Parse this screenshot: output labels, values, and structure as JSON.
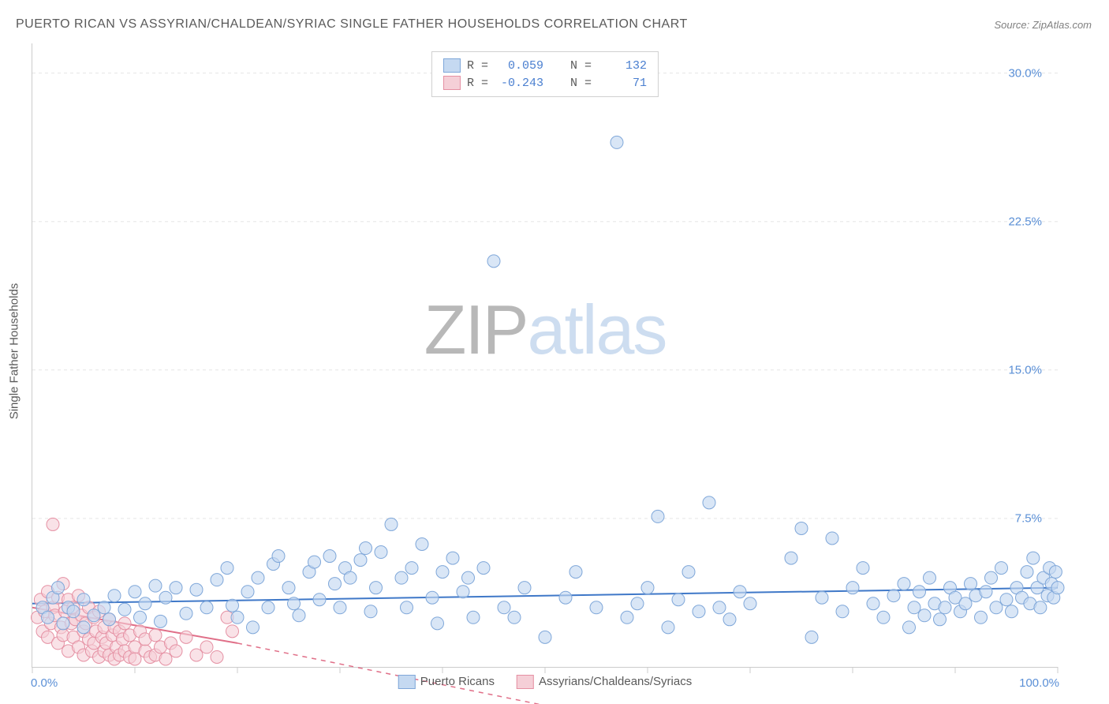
{
  "title": "PUERTO RICAN VS ASSYRIAN/CHALDEAN/SYRIAC SINGLE FATHER HOUSEHOLDS CORRELATION CHART",
  "source": "Source: ZipAtlas.com",
  "y_axis_label": "Single Father Households",
  "watermark": {
    "part1": "ZIP",
    "part2": "atlas"
  },
  "chart": {
    "type": "scatter",
    "xlim": [
      0,
      100
    ],
    "ylim": [
      0,
      31.5
    ],
    "x_ticks": [
      0,
      10,
      20,
      30,
      40,
      50,
      60,
      70,
      80,
      90,
      100
    ],
    "x_tick_labels": {
      "0": "0.0%",
      "100": "100.0%"
    },
    "y_ticks": [
      7.5,
      15.0,
      22.5,
      30.0
    ],
    "y_tick_labels": [
      "7.5%",
      "15.0%",
      "22.5%",
      "30.0%"
    ],
    "background_color": "#ffffff",
    "grid_color": "#e5e5e5",
    "axis_color": "#cccccc",
    "label_color": "#5a5a5a",
    "tick_label_color": "#5a8fd6",
    "marker_radius": 8,
    "marker_stroke_width": 1,
    "series": [
      {
        "name": "Puerto Ricans",
        "fill": "#c5d9f1",
        "stroke": "#7fa7d9",
        "fill_opacity": 0.65,
        "r_value": "0.059",
        "n_value": "132",
        "trend": {
          "x0": 0,
          "y0": 3.2,
          "x1": 100,
          "y1": 4.0,
          "color": "#3f78c8",
          "width": 2,
          "dash": "none",
          "dash_ext": "none"
        },
        "points": [
          [
            1,
            3.0
          ],
          [
            1.5,
            2.5
          ],
          [
            2,
            3.5
          ],
          [
            2.5,
            4.0
          ],
          [
            3,
            2.2
          ],
          [
            3.5,
            3.0
          ],
          [
            4,
            2.8
          ],
          [
            5,
            2.0
          ],
          [
            5,
            3.4
          ],
          [
            6,
            2.6
          ],
          [
            7,
            3.0
          ],
          [
            7.5,
            2.4
          ],
          [
            8,
            3.6
          ],
          [
            9,
            2.9
          ],
          [
            10,
            3.8
          ],
          [
            10.5,
            2.5
          ],
          [
            11,
            3.2
          ],
          [
            12,
            4.1
          ],
          [
            12.5,
            2.3
          ],
          [
            13,
            3.5
          ],
          [
            14,
            4.0
          ],
          [
            15,
            2.7
          ],
          [
            16,
            3.9
          ],
          [
            17,
            3.0
          ],
          [
            18,
            4.4
          ],
          [
            19,
            5.0
          ],
          [
            19.5,
            3.1
          ],
          [
            20,
            2.5
          ],
          [
            21,
            3.8
          ],
          [
            21.5,
            2.0
          ],
          [
            22,
            4.5
          ],
          [
            23,
            3.0
          ],
          [
            23.5,
            5.2
          ],
          [
            24,
            5.6
          ],
          [
            25,
            4.0
          ],
          [
            25.5,
            3.2
          ],
          [
            26,
            2.6
          ],
          [
            27,
            4.8
          ],
          [
            27.5,
            5.3
          ],
          [
            28,
            3.4
          ],
          [
            29,
            5.6
          ],
          [
            29.5,
            4.2
          ],
          [
            30,
            3.0
          ],
          [
            30.5,
            5.0
          ],
          [
            31,
            4.5
          ],
          [
            32,
            5.4
          ],
          [
            32.5,
            6.0
          ],
          [
            33,
            2.8
          ],
          [
            33.5,
            4.0
          ],
          [
            34,
            5.8
          ],
          [
            35,
            7.2
          ],
          [
            36,
            4.5
          ],
          [
            36.5,
            3.0
          ],
          [
            37,
            5.0
          ],
          [
            38,
            6.2
          ],
          [
            39,
            3.5
          ],
          [
            39.5,
            2.2
          ],
          [
            40,
            4.8
          ],
          [
            41,
            5.5
          ],
          [
            42,
            3.8
          ],
          [
            42.5,
            4.5
          ],
          [
            43,
            2.5
          ],
          [
            44,
            5.0
          ],
          [
            45,
            20.5
          ],
          [
            46,
            3.0
          ],
          [
            47,
            2.5
          ],
          [
            48,
            4.0
          ],
          [
            50,
            1.5
          ],
          [
            52,
            3.5
          ],
          [
            53,
            4.8
          ],
          [
            55,
            3.0
          ],
          [
            57,
            26.5
          ],
          [
            58,
            2.5
          ],
          [
            59,
            3.2
          ],
          [
            60,
            4.0
          ],
          [
            61,
            7.6
          ],
          [
            62,
            2.0
          ],
          [
            63,
            3.4
          ],
          [
            64,
            4.8
          ],
          [
            65,
            2.8
          ],
          [
            66,
            8.3
          ],
          [
            67,
            3.0
          ],
          [
            68,
            2.4
          ],
          [
            69,
            3.8
          ],
          [
            70,
            3.2
          ],
          [
            74,
            5.5
          ],
          [
            75,
            7.0
          ],
          [
            76,
            1.5
          ],
          [
            77,
            3.5
          ],
          [
            78,
            6.5
          ],
          [
            79,
            2.8
          ],
          [
            80,
            4.0
          ],
          [
            81,
            5.0
          ],
          [
            82,
            3.2
          ],
          [
            83,
            2.5
          ],
          [
            84,
            3.6
          ],
          [
            85,
            4.2
          ],
          [
            85.5,
            2.0
          ],
          [
            86,
            3.0
          ],
          [
            86.5,
            3.8
          ],
          [
            87,
            2.6
          ],
          [
            87.5,
            4.5
          ],
          [
            88,
            3.2
          ],
          [
            88.5,
            2.4
          ],
          [
            89,
            3.0
          ],
          [
            89.5,
            4.0
          ],
          [
            90,
            3.5
          ],
          [
            90.5,
            2.8
          ],
          [
            91,
            3.2
          ],
          [
            91.5,
            4.2
          ],
          [
            92,
            3.6
          ],
          [
            92.5,
            2.5
          ],
          [
            93,
            3.8
          ],
          [
            93.5,
            4.5
          ],
          [
            94,
            3.0
          ],
          [
            94.5,
            5.0
          ],
          [
            95,
            3.4
          ],
          [
            95.5,
            2.8
          ],
          [
            96,
            4.0
          ],
          [
            96.5,
            3.5
          ],
          [
            97,
            4.8
          ],
          [
            97.3,
            3.2
          ],
          [
            97.6,
            5.5
          ],
          [
            98,
            4.0
          ],
          [
            98.3,
            3.0
          ],
          [
            98.6,
            4.5
          ],
          [
            99,
            3.6
          ],
          [
            99.2,
            5.0
          ],
          [
            99.4,
            4.2
          ],
          [
            99.6,
            3.5
          ],
          [
            99.8,
            4.8
          ],
          [
            100,
            4.0
          ]
        ]
      },
      {
        "name": "Assyrians/Chaldeans/Syriacs",
        "fill": "#f5cfd7",
        "stroke": "#e590a3",
        "fill_opacity": 0.6,
        "r_value": "-0.243",
        "n_value": "71",
        "trend": {
          "x0": 0,
          "y0": 3.0,
          "x1": 20,
          "y1": 1.2,
          "color": "#e06f88",
          "width": 2,
          "dash": "none",
          "dash_ext": "6,6",
          "ext_x1": 60,
          "ext_y1": -3.0
        },
        "points": [
          [
            0.5,
            2.5
          ],
          [
            0.8,
            3.4
          ],
          [
            1.0,
            1.8
          ],
          [
            1.2,
            2.8
          ],
          [
            1.5,
            3.8
          ],
          [
            1.5,
            1.5
          ],
          [
            1.8,
            2.2
          ],
          [
            2.0,
            3.0
          ],
          [
            2.0,
            7.2
          ],
          [
            2.2,
            2.6
          ],
          [
            2.5,
            1.2
          ],
          [
            2.5,
            3.5
          ],
          [
            2.8,
            2.0
          ],
          [
            3.0,
            4.2
          ],
          [
            3.0,
            1.6
          ],
          [
            3.2,
            2.8
          ],
          [
            3.5,
            3.4
          ],
          [
            3.5,
            0.8
          ],
          [
            3.8,
            2.2
          ],
          [
            4.0,
            1.5
          ],
          [
            4.0,
            3.0
          ],
          [
            4.2,
            2.4
          ],
          [
            4.5,
            1.0
          ],
          [
            4.5,
            3.6
          ],
          [
            4.8,
            2.6
          ],
          [
            5.0,
            1.8
          ],
          [
            5.0,
            0.6
          ],
          [
            5.2,
            2.2
          ],
          [
            5.5,
            3.0
          ],
          [
            5.5,
            1.4
          ],
          [
            5.8,
            0.8
          ],
          [
            6.0,
            2.5
          ],
          [
            6.0,
            1.2
          ],
          [
            6.2,
            1.8
          ],
          [
            6.5,
            0.5
          ],
          [
            6.5,
            2.8
          ],
          [
            6.8,
            1.5
          ],
          [
            7.0,
            2.0
          ],
          [
            7.0,
            0.8
          ],
          [
            7.2,
            1.2
          ],
          [
            7.5,
            2.4
          ],
          [
            7.5,
            0.6
          ],
          [
            7.8,
            1.6
          ],
          [
            8.0,
            0.4
          ],
          [
            8.0,
            2.0
          ],
          [
            8.2,
            1.0
          ],
          [
            8.5,
            1.8
          ],
          [
            8.5,
            0.6
          ],
          [
            8.8,
            1.4
          ],
          [
            9.0,
            0.8
          ],
          [
            9.0,
            2.2
          ],
          [
            9.5,
            0.5
          ],
          [
            9.5,
            1.6
          ],
          [
            10.0,
            1.0
          ],
          [
            10.0,
            0.4
          ],
          [
            10.5,
            1.8
          ],
          [
            11.0,
            0.8
          ],
          [
            11.0,
            1.4
          ],
          [
            11.5,
            0.5
          ],
          [
            12.0,
            1.6
          ],
          [
            12.0,
            0.6
          ],
          [
            12.5,
            1.0
          ],
          [
            13.0,
            0.4
          ],
          [
            13.5,
            1.2
          ],
          [
            14.0,
            0.8
          ],
          [
            15.0,
            1.5
          ],
          [
            16.0,
            0.6
          ],
          [
            17.0,
            1.0
          ],
          [
            18.0,
            0.5
          ],
          [
            19.0,
            2.5
          ],
          [
            19.5,
            1.8
          ]
        ]
      }
    ],
    "legend_top": {
      "r_label": "R =",
      "n_label": "N ="
    },
    "legend_bottom": [
      {
        "label": "Puerto Ricans",
        "fill": "#c5d9f1",
        "stroke": "#7fa7d9"
      },
      {
        "label": "Assyrians/Chaldeans/Syriacs",
        "fill": "#f5cfd7",
        "stroke": "#e590a3"
      }
    ]
  }
}
